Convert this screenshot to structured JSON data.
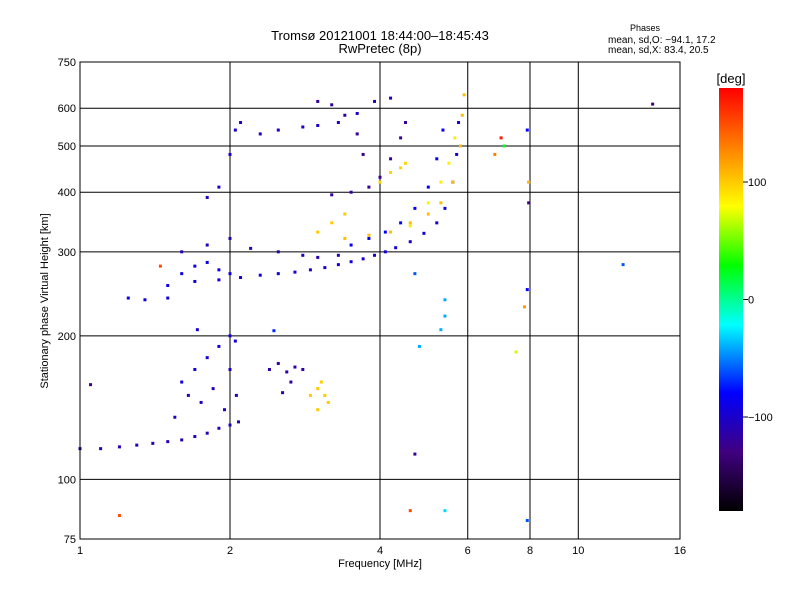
{
  "chart_data": {
    "type": "scatter",
    "title": "Tromsø 20121001 18:44:00–18:45:43",
    "subtitle": "RwPretec (8p)",
    "xlabel": "Frequency [MHz]",
    "ylabel": "Stationary phase Virtual Height [km]",
    "x_scale": "log",
    "y_scale": "log",
    "xlim": [
      1,
      16
    ],
    "ylim": [
      75,
      750
    ],
    "x_ticks": [
      1,
      2,
      4,
      6,
      8,
      10,
      16
    ],
    "x_tick_labels": [
      "1",
      "2",
      "4",
      "6",
      "8",
      "10",
      "16"
    ],
    "y_ticks": [
      75,
      100,
      200,
      300,
      400,
      500,
      600,
      750
    ],
    "y_tick_labels": [
      "75",
      "100",
      "200",
      "300",
      "400",
      "500",
      "600",
      "750"
    ],
    "grid": true,
    "stats": {
      "header": "Phases",
      "line_o": "mean, sd,O: −94.1, 17.2",
      "line_x": "mean, sd,X: 83.4, 20.5"
    },
    "colorbar": {
      "label": "[deg]",
      "min": -180,
      "max": 180,
      "ticks": [
        100,
        0,
        -100
      ],
      "tick_labels": [
        "100",
        "0",
        "−100"
      ]
    },
    "traces": [
      {
        "phase": -110,
        "points": [
          [
            1.0,
            116
          ],
          [
            1.1,
            116
          ],
          [
            1.2,
            117
          ],
          [
            1.3,
            118
          ],
          [
            1.4,
            119
          ],
          [
            1.5,
            120
          ],
          [
            1.6,
            121
          ],
          [
            1.7,
            123
          ],
          [
            1.8,
            125
          ],
          [
            1.9,
            128
          ],
          [
            2.0,
            130
          ],
          [
            2.08,
            132
          ]
        ]
      },
      {
        "phase": -95,
        "points": [
          [
            1.6,
            160
          ],
          [
            1.7,
            170
          ],
          [
            1.8,
            180
          ],
          [
            1.9,
            190
          ],
          [
            2.0,
            200
          ],
          [
            2.05,
            195
          ]
        ]
      },
      {
        "phase": -105,
        "points": [
          [
            1.55,
            135
          ],
          [
            1.65,
            150
          ],
          [
            1.75,
            145
          ],
          [
            1.85,
            155
          ],
          [
            1.95,
            140
          ],
          [
            2.0,
            170
          ],
          [
            2.06,
            150
          ]
        ]
      },
      {
        "phase": -90,
        "points": [
          [
            1.25,
            240
          ],
          [
            1.35,
            238
          ],
          [
            1.5,
            255
          ],
          [
            1.6,
            270
          ],
          [
            1.7,
            280
          ],
          [
            1.8,
            285
          ],
          [
            1.9,
            275
          ],
          [
            2.0,
            270
          ]
        ]
      },
      {
        "phase": -95,
        "points": [
          [
            1.5,
            240
          ],
          [
            1.7,
            260
          ],
          [
            1.9,
            262
          ],
          [
            2.1,
            265
          ],
          [
            2.3,
            268
          ],
          [
            2.5,
            270
          ],
          [
            2.7,
            272
          ],
          [
            2.9,
            275
          ],
          [
            3.1,
            278
          ],
          [
            3.3,
            282
          ],
          [
            3.5,
            286
          ],
          [
            3.7,
            290
          ],
          [
            3.9,
            295
          ],
          [
            4.1,
            300
          ],
          [
            4.3,
            306
          ],
          [
            4.6,
            315
          ],
          [
            4.9,
            328
          ],
          [
            5.2,
            345
          ],
          [
            5.4,
            370
          ],
          [
            5.6,
            420
          ],
          [
            5.7,
            480
          ],
          [
            5.75,
            560
          ]
        ]
      },
      {
        "phase": -110,
        "points": [
          [
            1.6,
            300
          ],
          [
            1.8,
            310
          ],
          [
            2.0,
            320
          ],
          [
            2.2,
            305
          ],
          [
            2.5,
            300
          ],
          [
            2.8,
            295
          ],
          [
            3.0,
            292
          ],
          [
            3.3,
            295
          ]
        ]
      },
      {
        "phase": -85,
        "points": [
          [
            3.5,
            310
          ],
          [
            3.8,
            320
          ],
          [
            4.1,
            330
          ],
          [
            4.4,
            345
          ],
          [
            4.7,
            370
          ],
          [
            5.0,
            410
          ],
          [
            5.2,
            470
          ],
          [
            5.35,
            540
          ]
        ]
      },
      {
        "phase": -120,
        "points": [
          [
            3.2,
            395
          ],
          [
            3.5,
            400
          ],
          [
            3.8,
            410
          ],
          [
            4.0,
            430
          ],
          [
            4.2,
            470
          ],
          [
            4.4,
            520
          ],
          [
            4.5,
            560
          ]
        ]
      },
      {
        "phase": -100,
        "points": [
          [
            1.8,
            390
          ],
          [
            1.9,
            410
          ],
          [
            2.0,
            480
          ],
          [
            2.05,
            540
          ],
          [
            2.1,
            560
          ]
        ]
      },
      {
        "phase": -100,
        "points": [
          [
            2.3,
            530
          ],
          [
            2.5,
            540
          ],
          [
            2.8,
            548
          ],
          [
            3.0,
            552
          ],
          [
            3.3,
            560
          ],
          [
            3.6,
            585
          ],
          [
            3.9,
            620
          ],
          [
            4.2,
            630
          ]
        ]
      },
      {
        "phase": -120,
        "points": [
          [
            3.0,
            620
          ],
          [
            3.2,
            610
          ],
          [
            3.4,
            580
          ],
          [
            3.6,
            530
          ],
          [
            3.7,
            480
          ]
        ]
      },
      {
        "phase": 95,
        "points": [
          [
            4.0,
            420
          ],
          [
            4.2,
            440
          ],
          [
            4.4,
            450
          ],
          [
            4.5,
            460
          ]
        ]
      },
      {
        "phase": 105,
        "points": [
          [
            3.4,
            320
          ],
          [
            3.8,
            325
          ],
          [
            4.2,
            330
          ],
          [
            4.6,
            345
          ],
          [
            5.0,
            360
          ],
          [
            5.3,
            380
          ],
          [
            5.6,
            420
          ],
          [
            5.8,
            500
          ],
          [
            5.85,
            580
          ],
          [
            5.9,
            640
          ]
        ]
      },
      {
        "phase": 85,
        "points": [
          [
            4.6,
            340
          ],
          [
            5.0,
            380
          ],
          [
            5.3,
            420
          ],
          [
            5.5,
            460
          ],
          [
            5.65,
            520
          ]
        ]
      },
      {
        "phase": 100,
        "points": [
          [
            3.0,
            330
          ],
          [
            3.2,
            345
          ],
          [
            3.4,
            360
          ]
        ]
      },
      {
        "phase": 100,
        "points": [
          [
            2.9,
            150
          ],
          [
            3.0,
            155
          ],
          [
            3.05,
            160
          ],
          [
            3.1,
            150
          ],
          [
            3.15,
            145
          ],
          [
            3.0,
            140
          ]
        ]
      },
      {
        "phase": -115,
        "points": [
          [
            2.4,
            170
          ],
          [
            2.5,
            175
          ],
          [
            2.6,
            168
          ],
          [
            2.7,
            172
          ],
          [
            2.8,
            170
          ],
          [
            2.65,
            160
          ],
          [
            2.55,
            152
          ]
        ]
      }
    ],
    "isolated_points": [
      {
        "x": 1.2,
        "y": 84,
        "phase": 150
      },
      {
        "x": 4.6,
        "y": 86,
        "phase": 150
      },
      {
        "x": 5.4,
        "y": 86,
        "phase": -30
      },
      {
        "x": 7.9,
        "y": 82,
        "phase": -60
      },
      {
        "x": 4.7,
        "y": 113,
        "phase": -120
      },
      {
        "x": 4.8,
        "y": 190,
        "phase": -40
      },
      {
        "x": 5.3,
        "y": 206,
        "phase": -40
      },
      {
        "x": 5.4,
        "y": 220,
        "phase": -40
      },
      {
        "x": 5.4,
        "y": 238,
        "phase": -40
      },
      {
        "x": 4.7,
        "y": 270,
        "phase": -60
      },
      {
        "x": 7.5,
        "y": 185,
        "phase": 70
      },
      {
        "x": 7.8,
        "y": 230,
        "phase": 120
      },
      {
        "x": 7.9,
        "y": 250,
        "phase": -80
      },
      {
        "x": 7.95,
        "y": 380,
        "phase": -130
      },
      {
        "x": 7.95,
        "y": 420,
        "phase": 110
      },
      {
        "x": 7.9,
        "y": 540,
        "phase": -80
      },
      {
        "x": 7.0,
        "y": 520,
        "phase": 170
      },
      {
        "x": 6.8,
        "y": 480,
        "phase": 130
      },
      {
        "x": 7.1,
        "y": 500,
        "phase": 20
      },
      {
        "x": 12.3,
        "y": 282,
        "phase": -60
      },
      {
        "x": 14.1,
        "y": 612,
        "phase": -130
      },
      {
        "x": 1.05,
        "y": 158,
        "phase": -130
      },
      {
        "x": 1.45,
        "y": 280,
        "phase": 150
      },
      {
        "x": 1.72,
        "y": 206,
        "phase": -100
      },
      {
        "x": 2.45,
        "y": 205,
        "phase": -70
      }
    ]
  }
}
